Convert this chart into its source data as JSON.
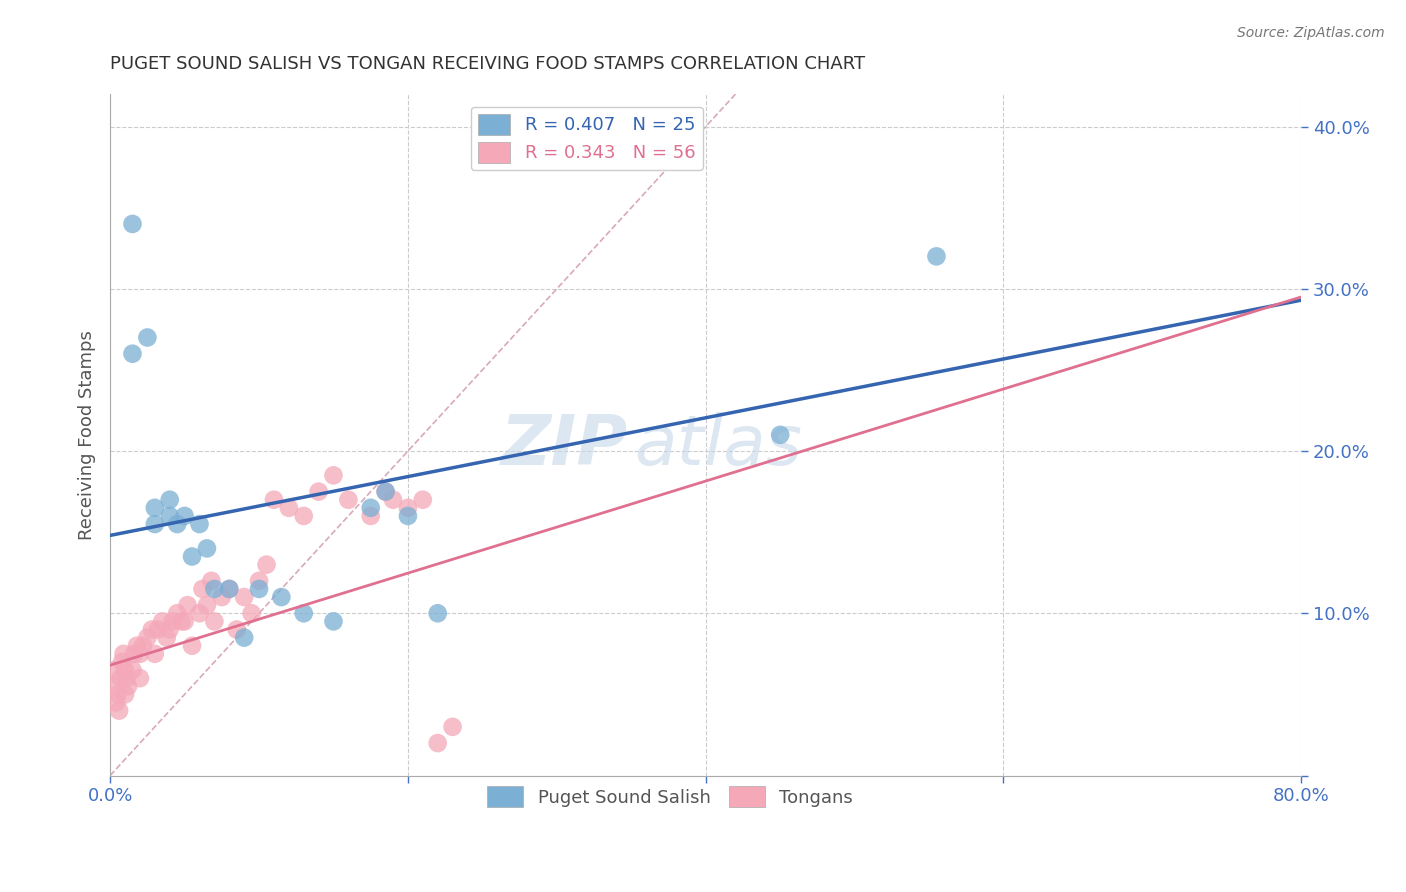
{
  "title": "PUGET SOUND SALISH VS TONGAN RECEIVING FOOD STAMPS CORRELATION CHART",
  "source": "Source: ZipAtlas.com",
  "ylabel": "Receiving Food Stamps",
  "watermark_zip": "ZIP",
  "watermark_atlas": "atlas",
  "xlim": [
    0.0,
    0.8
  ],
  "ylim": [
    0.0,
    0.42
  ],
  "xticks": [
    0.0,
    0.2,
    0.4,
    0.6,
    0.8
  ],
  "yticks": [
    0.0,
    0.1,
    0.2,
    0.3,
    0.4
  ],
  "xticklabels_first": "0.0%",
  "xticklabels_last": "80.0%",
  "yticklabels": [
    "",
    "10.0%",
    "20.0%",
    "30.0%",
    "40.0%"
  ],
  "tick_color": "#4472c4",
  "blue_color": "#7bafd4",
  "pink_color": "#f4a8b8",
  "blue_line_color": "#3565b0",
  "pink_line_color": "#e07090",
  "ref_line_color": "#d4a0b0",
  "legend_blue_label": "R = 0.407   N = 25",
  "legend_pink_label": "R = 0.343   N = 56",
  "legend_blue_entry": "Puget Sound Salish",
  "legend_pink_entry": "Tongans",
  "blue_x": [
    0.015,
    0.015,
    0.025,
    0.03,
    0.03,
    0.04,
    0.04,
    0.045,
    0.05,
    0.055,
    0.06,
    0.065,
    0.07,
    0.08,
    0.09,
    0.1,
    0.115,
    0.13,
    0.15,
    0.175,
    0.185,
    0.2,
    0.45,
    0.555,
    0.22
  ],
  "blue_y": [
    0.34,
    0.26,
    0.27,
    0.155,
    0.165,
    0.16,
    0.17,
    0.155,
    0.16,
    0.135,
    0.155,
    0.14,
    0.115,
    0.115,
    0.085,
    0.115,
    0.11,
    0.1,
    0.095,
    0.165,
    0.175,
    0.16,
    0.21,
    0.32,
    0.1
  ],
  "pink_x": [
    0.002,
    0.003,
    0.004,
    0.005,
    0.006,
    0.007,
    0.008,
    0.009,
    0.01,
    0.01,
    0.011,
    0.012,
    0.015,
    0.016,
    0.018,
    0.02,
    0.02,
    0.022,
    0.025,
    0.028,
    0.03,
    0.032,
    0.035,
    0.038,
    0.04,
    0.042,
    0.045,
    0.048,
    0.05,
    0.052,
    0.055,
    0.06,
    0.062,
    0.065,
    0.068,
    0.07,
    0.075,
    0.08,
    0.085,
    0.09,
    0.095,
    0.1,
    0.105,
    0.11,
    0.12,
    0.13,
    0.14,
    0.15,
    0.16,
    0.175,
    0.185,
    0.19,
    0.2,
    0.21,
    0.22,
    0.23
  ],
  "pink_y": [
    0.055,
    0.065,
    0.045,
    0.05,
    0.04,
    0.06,
    0.07,
    0.075,
    0.05,
    0.065,
    0.06,
    0.055,
    0.065,
    0.075,
    0.08,
    0.06,
    0.075,
    0.08,
    0.085,
    0.09,
    0.075,
    0.09,
    0.095,
    0.085,
    0.09,
    0.095,
    0.1,
    0.095,
    0.095,
    0.105,
    0.08,
    0.1,
    0.115,
    0.105,
    0.12,
    0.095,
    0.11,
    0.115,
    0.09,
    0.11,
    0.1,
    0.12,
    0.13,
    0.17,
    0.165,
    0.16,
    0.175,
    0.185,
    0.17,
    0.16,
    0.175,
    0.17,
    0.165,
    0.17,
    0.02,
    0.03
  ],
  "blue_line_x0": 0.0,
  "blue_line_y0": 0.148,
  "blue_line_x1": 0.8,
  "blue_line_y1": 0.293,
  "pink_line_x0": 0.0,
  "pink_line_y0": 0.068,
  "pink_line_x1": 0.8,
  "pink_line_y1": 0.295,
  "ref_line_x0": 0.0,
  "ref_line_y0": 0.0,
  "ref_line_x1": 0.42,
  "ref_line_y1": 0.42,
  "background_color": "#ffffff",
  "grid_color": "#cccccc"
}
